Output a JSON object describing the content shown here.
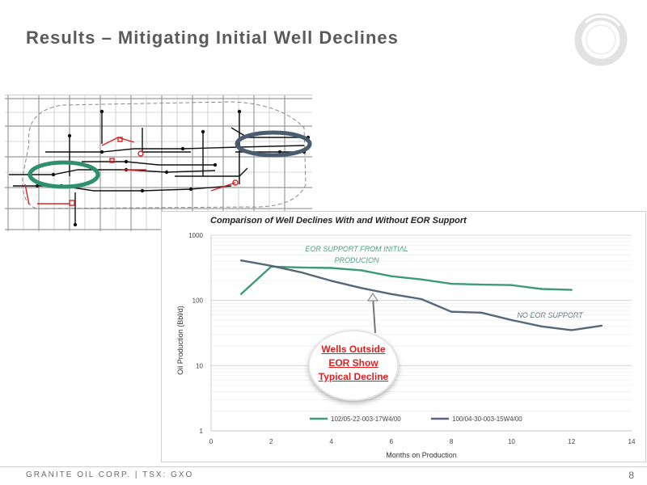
{
  "slide": {
    "title": "Results – Mitigating Initial Well Declines",
    "footer": "GRANITE OIL CORP. | TSX: GXO",
    "page_number": "8"
  },
  "colors": {
    "series_green": "#3e9a79",
    "series_slate": "#56677a",
    "map_ellipse_green": "#2f8f6f",
    "map_ellipse_blue": "#4a5c70",
    "callout_red": "#e01f1f",
    "logo_gray": "#e2e2e2"
  },
  "icons": {
    "logo": "ring-logo-icon"
  },
  "callout": {
    "line1": "Wells Outside",
    "line2": "EOR Show",
    "line3": "Typical Decline"
  },
  "chart_data": {
    "type": "line",
    "title": "Comparison of Well Declines With and Without EOR Support",
    "xlabel": "Months on Production",
    "ylabel": "Oil Production (Bbl/d)",
    "xlim": [
      0,
      14
    ],
    "ylim": [
      1,
      1000
    ],
    "y_scale": "log",
    "x_ticks": [
      0,
      2,
      4,
      6,
      8,
      10,
      12,
      14
    ],
    "y_ticks": [
      1,
      10,
      100,
      1000
    ],
    "grid": true,
    "legend_position": "bottom",
    "annotations": [
      "EOR SUPPORT FROM INITIAL PRODUCION",
      "NO EOR SUPPORT"
    ],
    "series": [
      {
        "name": "102/05-22-003-17W4/00",
        "x": [
          1,
          2,
          3,
          4,
          5,
          6,
          7,
          8,
          9,
          10,
          11,
          12
        ],
        "values": [
          125,
          330,
          320,
          315,
          290,
          235,
          210,
          180,
          175,
          172,
          150,
          145
        ]
      },
      {
        "name": "100/04-30-003-15W4/00",
        "x": [
          1,
          2,
          3,
          4,
          5,
          6,
          7,
          8,
          9,
          10,
          11,
          12,
          13
        ],
        "values": [
          410,
          340,
          270,
          200,
          155,
          125,
          105,
          67,
          65,
          50,
          40,
          35,
          41
        ]
      }
    ]
  }
}
